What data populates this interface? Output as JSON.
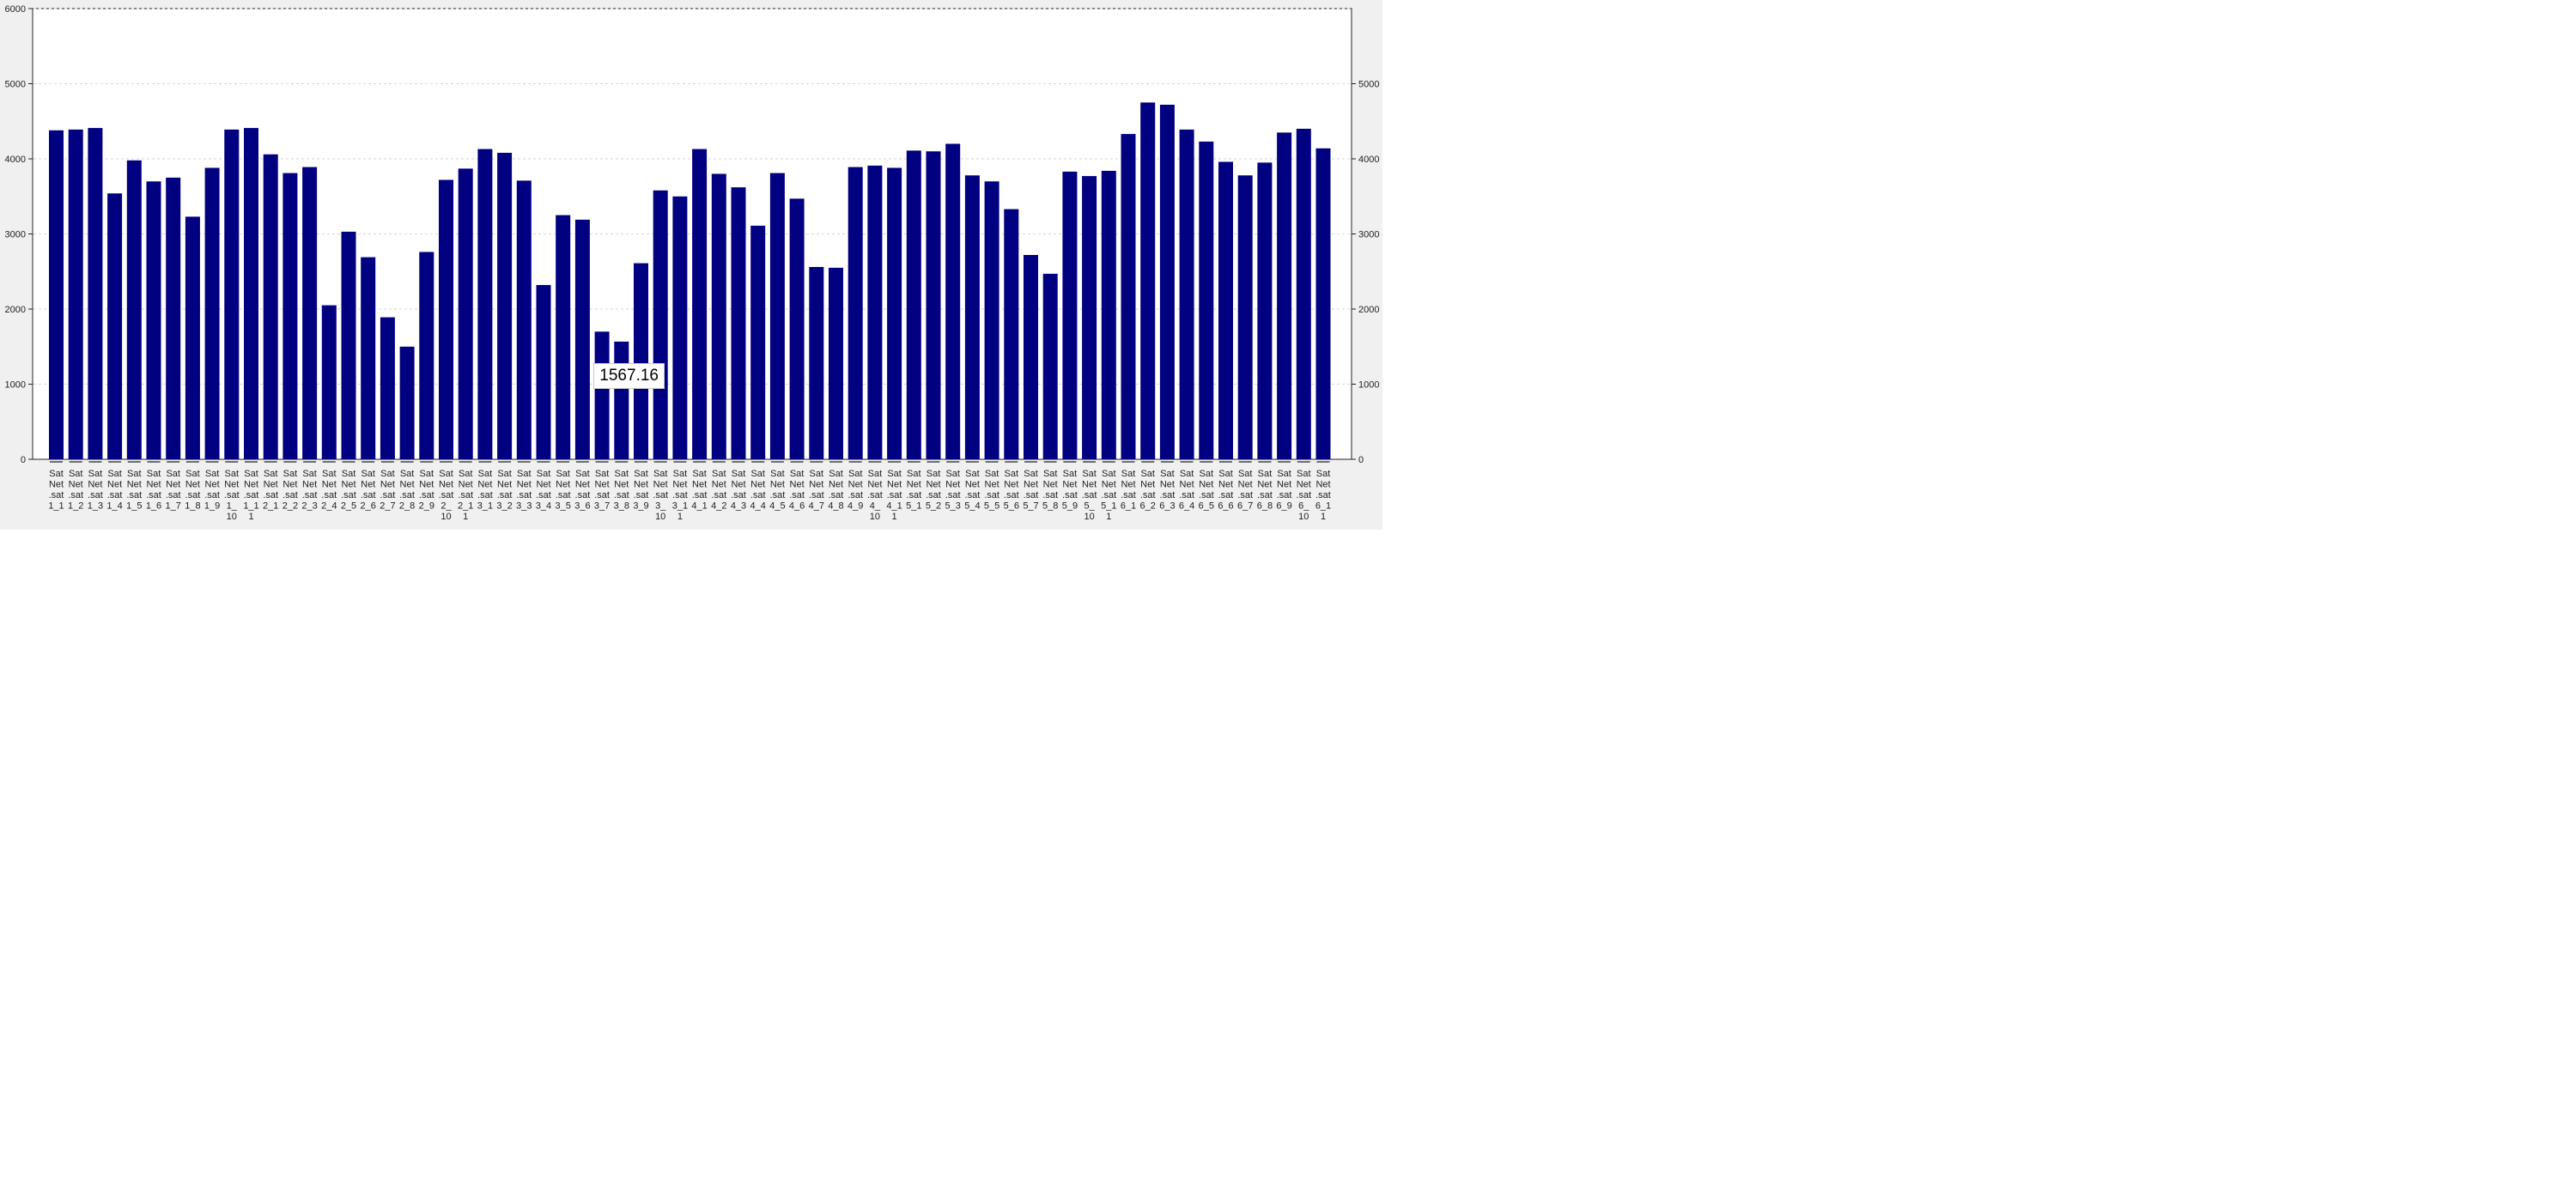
{
  "chart_data": {
    "type": "bar",
    "title": "",
    "xlabel": "",
    "ylabel": "",
    "ylim": [
      0,
      6000
    ],
    "yticks_left": [
      0,
      1000,
      2000,
      3000,
      4000,
      5000,
      6000
    ],
    "yticks_right": [
      0,
      1000,
      2000,
      3000,
      4000,
      5000
    ],
    "grid": true,
    "bar_color": "#000080",
    "categories": [
      "SatNet.sat1_1",
      "SatNet.sat1_2",
      "SatNet.sat1_3",
      "SatNet.sat1_4",
      "SatNet.sat1_5",
      "SatNet.sat1_6",
      "SatNet.sat1_7",
      "SatNet.sat1_8",
      "SatNet.sat1_9",
      "SatNet.sat1_10",
      "SatNet.sat1_11",
      "SatNet.sat2_1",
      "SatNet.sat2_2",
      "SatNet.sat2_3",
      "SatNet.sat2_4",
      "SatNet.sat2_5",
      "SatNet.sat2_6",
      "SatNet.sat2_7",
      "SatNet.sat2_8",
      "SatNet.sat2_9",
      "SatNet.sat2_10",
      "SatNet.sat2_11",
      "SatNet.sat3_1",
      "SatNet.sat3_2",
      "SatNet.sat3_3",
      "SatNet.sat3_4",
      "SatNet.sat3_5",
      "SatNet.sat3_6",
      "SatNet.sat3_7",
      "SatNet.sat3_8",
      "SatNet.sat3_9",
      "SatNet.sat3_10",
      "SatNet.sat3_11",
      "SatNet.sat4_1",
      "SatNet.sat4_2",
      "SatNet.sat4_3",
      "SatNet.sat4_4",
      "SatNet.sat4_5",
      "SatNet.sat4_6",
      "SatNet.sat4_7",
      "SatNet.sat4_8",
      "SatNet.sat4_9",
      "SatNet.sat4_10",
      "SatNet.sat4_11",
      "SatNet.sat5_1",
      "SatNet.sat5_2",
      "SatNet.sat5_3",
      "SatNet.sat5_4",
      "SatNet.sat5_5",
      "SatNet.sat5_6",
      "SatNet.sat5_7",
      "SatNet.sat5_8",
      "SatNet.sat5_9",
      "SatNet.sat5_10",
      "SatNet.sat5_11",
      "SatNet.sat6_1",
      "SatNet.sat6_2",
      "SatNet.sat6_3",
      "SatNet.sat6_4",
      "SatNet.sat6_5",
      "SatNet.sat6_6",
      "SatNet.sat6_7",
      "SatNet.sat6_8",
      "SatNet.sat6_9",
      "SatNet.sat6_10",
      "SatNet.sat6_11"
    ],
    "category_label_lines": [
      [
        "Sat",
        "Net",
        ".sat",
        "1_1"
      ],
      [
        "Sat",
        "Net",
        ".sat",
        "1_2"
      ],
      [
        "Sat",
        "Net",
        ".sat",
        "1_3"
      ],
      [
        "Sat",
        "Net",
        ".sat",
        "1_4"
      ],
      [
        "Sat",
        "Net",
        ".sat",
        "1_5"
      ],
      [
        "Sat",
        "Net",
        ".sat",
        "1_6"
      ],
      [
        "Sat",
        "Net",
        ".sat",
        "1_7"
      ],
      [
        "Sat",
        "Net",
        ".sat",
        "1_8"
      ],
      [
        "Sat",
        "Net",
        ".sat",
        "1_9"
      ],
      [
        "Sat",
        "Net",
        ".sat",
        "1_",
        "10"
      ],
      [
        "Sat",
        "Net",
        ".sat",
        "1_1",
        "1"
      ],
      [
        "Sat",
        "Net",
        ".sat",
        "2_1"
      ],
      [
        "Sat",
        "Net",
        ".sat",
        "2_2"
      ],
      [
        "Sat",
        "Net",
        ".sat",
        "2_3"
      ],
      [
        "Sat",
        "Net",
        ".sat",
        "2_4"
      ],
      [
        "Sat",
        "Net",
        ".sat",
        "2_5"
      ],
      [
        "Sat",
        "Net",
        ".sat",
        "2_6"
      ],
      [
        "Sat",
        "Net",
        ".sat",
        "2_7"
      ],
      [
        "Sat",
        "Net",
        ".sat",
        "2_8"
      ],
      [
        "Sat",
        "Net",
        ".sat",
        "2_9"
      ],
      [
        "Sat",
        "Net",
        ".sat",
        "2_",
        "10"
      ],
      [
        "Sat",
        "Net",
        ".sat",
        "2_1",
        "1"
      ],
      [
        "Sat",
        "Net",
        ".sat",
        "3_1"
      ],
      [
        "Sat",
        "Net",
        ".sat",
        "3_2"
      ],
      [
        "Sat",
        "Net",
        ".sat",
        "3_3"
      ],
      [
        "Sat",
        "Net",
        ".sat",
        "3_4"
      ],
      [
        "Sat",
        "Net",
        ".sat",
        "3_5"
      ],
      [
        "Sat",
        "Net",
        ".sat",
        "3_6"
      ],
      [
        "Sat",
        "Net",
        ".sat",
        "3_7"
      ],
      [
        "Sat",
        "Net",
        ".sat",
        "3_8"
      ],
      [
        "Sat",
        "Net",
        ".sat",
        "3_9"
      ],
      [
        "Sat",
        "Net",
        ".sat",
        "3_",
        "10"
      ],
      [
        "Sat",
        "Net",
        ".sat",
        "3_1",
        "1"
      ],
      [
        "Sat",
        "Net",
        ".sat",
        "4_1"
      ],
      [
        "Sat",
        "Net",
        ".sat",
        "4_2"
      ],
      [
        "Sat",
        "Net",
        ".sat",
        "4_3"
      ],
      [
        "Sat",
        "Net",
        ".sat",
        "4_4"
      ],
      [
        "Sat",
        "Net",
        ".sat",
        "4_5"
      ],
      [
        "Sat",
        "Net",
        ".sat",
        "4_6"
      ],
      [
        "Sat",
        "Net",
        ".sat",
        "4_7"
      ],
      [
        "Sat",
        "Net",
        ".sat",
        "4_8"
      ],
      [
        "Sat",
        "Net",
        ".sat",
        "4_9"
      ],
      [
        "Sat",
        "Net",
        ".sat",
        "4_",
        "10"
      ],
      [
        "Sat",
        "Net",
        ".sat",
        "4_1",
        "1"
      ],
      [
        "Sat",
        "Net",
        ".sat",
        "5_1"
      ],
      [
        "Sat",
        "Net",
        ".sat",
        "5_2"
      ],
      [
        "Sat",
        "Net",
        ".sat",
        "5_3"
      ],
      [
        "Sat",
        "Net",
        ".sat",
        "5_4"
      ],
      [
        "Sat",
        "Net",
        ".sat",
        "5_5"
      ],
      [
        "Sat",
        "Net",
        ".sat",
        "5_6"
      ],
      [
        "Sat",
        "Net",
        ".sat",
        "5_7"
      ],
      [
        "Sat",
        "Net",
        ".sat",
        "5_8"
      ],
      [
        "Sat",
        "Net",
        ".sat",
        "5_9"
      ],
      [
        "Sat",
        "Net",
        ".sat",
        "5_",
        "10"
      ],
      [
        "Sat",
        "Net",
        ".sat",
        "5_1",
        "1"
      ],
      [
        "Sat",
        "Net",
        ".sat",
        "6_1"
      ],
      [
        "Sat",
        "Net",
        ".sat",
        "6_2"
      ],
      [
        "Sat",
        "Net",
        ".sat",
        "6_3"
      ],
      [
        "Sat",
        "Net",
        ".sat",
        "6_4"
      ],
      [
        "Sat",
        "Net",
        ".sat",
        "6_5"
      ],
      [
        "Sat",
        "Net",
        ".sat",
        "6_6"
      ],
      [
        "Sat",
        "Net",
        ".sat",
        "6_7"
      ],
      [
        "Sat",
        "Net",
        ".sat",
        "6_8"
      ],
      [
        "Sat",
        "Net",
        ".sat",
        "6_9"
      ],
      [
        "Sat",
        "Net",
        ".sat",
        "6_",
        "10"
      ],
      [
        "Sat",
        "Net",
        ".sat",
        "6_1",
        "1"
      ]
    ],
    "values": [
      4380,
      4390,
      4410,
      3540,
      3980,
      3700,
      3750,
      3230,
      3880,
      4390,
      4410,
      4060,
      3810,
      3890,
      2050,
      3030,
      2690,
      1890,
      1500,
      2760,
      3720,
      3870,
      4130,
      4080,
      3710,
      2320,
      3250,
      3190,
      1700,
      1567.16,
      2610,
      3580,
      3500,
      4130,
      3800,
      3620,
      3110,
      3810,
      3470,
      2560,
      2550,
      3890,
      3910,
      3880,
      4110,
      4100,
      4200,
      3780,
      3700,
      3330,
      2720,
      2470,
      3830,
      3770,
      3840,
      4330,
      4750,
      4720,
      4390,
      4230,
      3960,
      3780,
      3950,
      4350,
      4400,
      4140
    ],
    "tooltip": {
      "category_index": 29,
      "text": "1567.16"
    }
  }
}
